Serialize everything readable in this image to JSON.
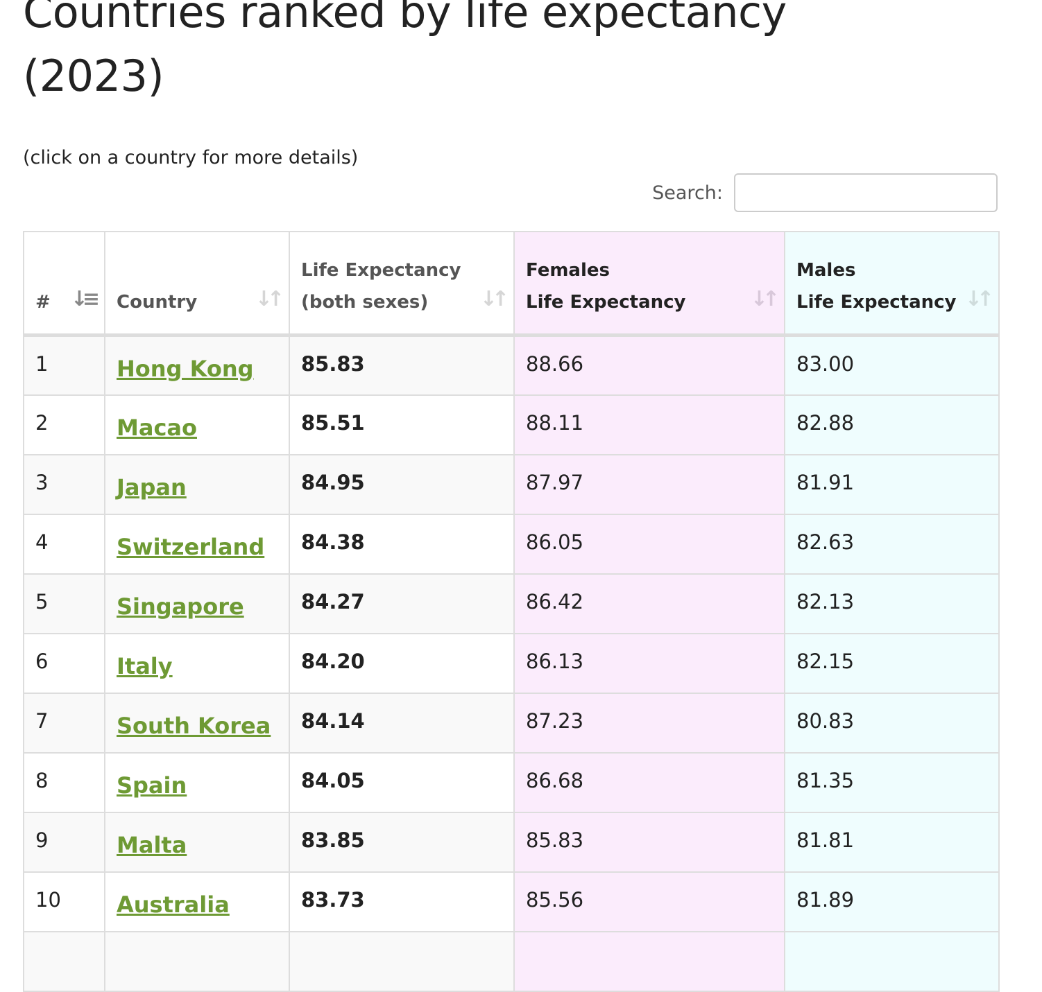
{
  "title": "Countries ranked by life expectancy (2023)",
  "note": "(click on a country for more details)",
  "search": {
    "label": "Search:",
    "value": ""
  },
  "colors": {
    "link": "#6e9a34",
    "females_bg": "#fbecfc",
    "males_bg": "#effdfe"
  },
  "table": {
    "headers": {
      "rank": "#",
      "country": "Country",
      "both_1": "Life Expectancy",
      "both_2": "(both sexes)",
      "females_1": "Females",
      "females_2": "Life Expectancy",
      "males_1": "Males",
      "males_2": "Life Expectancy"
    },
    "rows": [
      {
        "rank": "1",
        "country": "Hong Kong",
        "both": "85.83",
        "females": "88.66",
        "males": "83.00"
      },
      {
        "rank": "2",
        "country": "Macao",
        "both": "85.51",
        "females": "88.11",
        "males": "82.88"
      },
      {
        "rank": "3",
        "country": "Japan",
        "both": "84.95",
        "females": "87.97",
        "males": "81.91"
      },
      {
        "rank": "4",
        "country": "Switzerland",
        "both": "84.38",
        "females": "86.05",
        "males": "82.63"
      },
      {
        "rank": "5",
        "country": "Singapore",
        "both": "84.27",
        "females": "86.42",
        "males": "82.13"
      },
      {
        "rank": "6",
        "country": "Italy",
        "both": "84.20",
        "females": "86.13",
        "males": "82.15"
      },
      {
        "rank": "7",
        "country": "South Korea",
        "both": "84.14",
        "females": "87.23",
        "males": "80.83"
      },
      {
        "rank": "8",
        "country": "Spain",
        "both": "84.05",
        "females": "86.68",
        "males": "81.35"
      },
      {
        "rank": "9",
        "country": "Malta",
        "both": "83.85",
        "females": "85.83",
        "males": "81.81"
      },
      {
        "rank": "10",
        "country": "Australia",
        "both": "83.73",
        "females": "85.56",
        "males": "81.89"
      }
    ]
  }
}
